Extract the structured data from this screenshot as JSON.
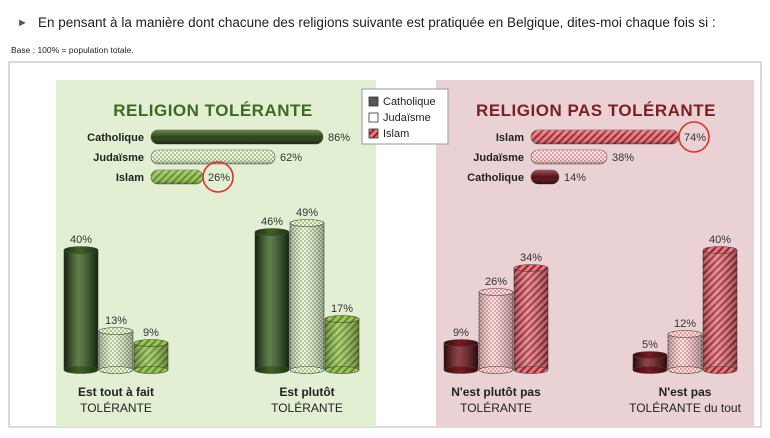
{
  "header": {
    "arrow": "►",
    "question": "En pensant à la manière dont chacune des religions suivante est pratiquée en Belgique, dites-moi chaque fois si :",
    "base": "Base : 100% = population totale."
  },
  "colors": {
    "catholique_green": "#2f4a1a",
    "judaisme_green": "#dcebc6",
    "islam_green": "#7fae3c",
    "catholique_red": "#5a1014",
    "judaisme_red": "#f2c3c3",
    "islam_red": "#c0303a",
    "left_panel_bg": "#e2efd2",
    "right_panel_bg": "#ead2d4",
    "title_green": "#3d6a22",
    "title_red": "#7a1f24",
    "circle": "#e0312f"
  },
  "legend": {
    "items": [
      "Catholique",
      "Judaïsme",
      "Islam"
    ]
  },
  "chart_data": [
    {
      "type": "bar",
      "orientation": "horizontal",
      "title": "RELIGION TOLÉRANTE",
      "categories": [
        "Catholique",
        "Judaïsme",
        "Islam"
      ],
      "values": [
        86,
        62,
        26
      ],
      "unit": "%",
      "highlight": "Islam"
    },
    {
      "type": "bar",
      "orientation": "horizontal",
      "title": "RELIGION PAS TOLÉRANTE",
      "categories": [
        "Islam",
        "Judaïsme",
        "Catholique"
      ],
      "values": [
        74,
        38,
        14
      ],
      "unit": "%",
      "highlight": "Islam"
    },
    {
      "type": "bar",
      "orientation": "vertical",
      "categories": [
        {
          "line1": "Est tout à fait",
          "line2": "TOLÉRANTE"
        },
        {
          "line1": "Est plutôt",
          "line2": "TOLÉRANTE"
        },
        {
          "line1": "N'est plutôt pas",
          "line2": "TOLÉRANTE"
        },
        {
          "line1": "N'est pas",
          "line2": "TOLÉRANTE du tout"
        }
      ],
      "series": [
        {
          "name": "Catholique",
          "values": [
            40,
            46,
            9,
            5
          ]
        },
        {
          "name": "Judaïsme",
          "values": [
            13,
            49,
            26,
            12
          ]
        },
        {
          "name": "Islam",
          "values": [
            9,
            17,
            34,
            40
          ]
        }
      ],
      "unit": "%"
    }
  ]
}
